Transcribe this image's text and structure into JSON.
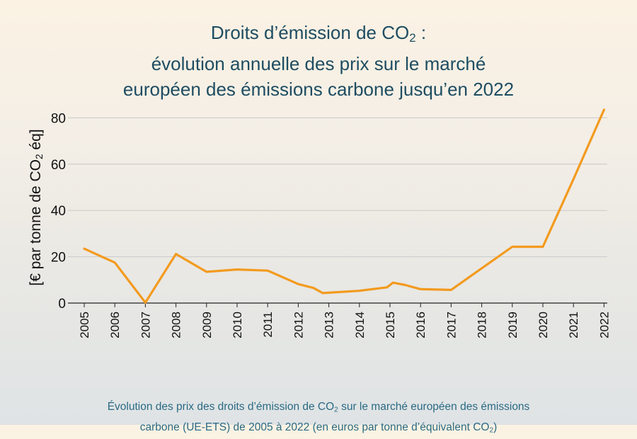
{
  "title": {
    "line1_pre": "Droits d’émission de CO",
    "line1_sub": "2",
    "line1_post": " :",
    "line2": "évolution annuelle des prix sur le marché",
    "line3": "européen des émissions carbone jusqu’en 2022"
  },
  "caption": {
    "line1_pre": "Évolution des prix des droits d’émission de CO",
    "line1_sub": "2",
    "line1_post": " sur le marché européen des émissions",
    "line2_pre": "carbone (UE-ETS) de 2005 à 2022 (en euros par tonne d’équivalent CO",
    "line2_sub": "2",
    "line2_post": ")"
  },
  "chart_data": {
    "type": "line",
    "ylabel_pre": "[€ par tonne de CO",
    "ylabel_sub": "2",
    "ylabel_post": " éq]",
    "xlabel": "",
    "ylim": [
      0,
      85
    ],
    "yticks": [
      0,
      20,
      40,
      60,
      80
    ],
    "xticks": [
      "2005",
      "2006",
      "2007",
      "2008",
      "2009",
      "2010",
      "2011",
      "2012",
      "2013",
      "2014",
      "2015",
      "2016",
      "2017",
      "2018",
      "2019",
      "2020",
      "2021",
      "2022"
    ],
    "grid": "horizontal",
    "series": [
      {
        "color": "#f39a1e",
        "points": [
          [
            2005.0,
            23.5
          ],
          [
            2006.0,
            17.5
          ],
          [
            2007.0,
            0.2
          ],
          [
            2008.0,
            21.2
          ],
          [
            2009.0,
            13.5
          ],
          [
            2010.0,
            14.5
          ],
          [
            2011.0,
            14.0
          ],
          [
            2012.0,
            8.2
          ],
          [
            2012.5,
            6.5
          ],
          [
            2012.8,
            4.3
          ],
          [
            2014.0,
            5.3
          ],
          [
            2014.9,
            6.8
          ],
          [
            2015.1,
            8.8
          ],
          [
            2015.5,
            7.8
          ],
          [
            2016.0,
            6.0
          ],
          [
            2017.0,
            5.7
          ],
          [
            2018.0,
            15.0
          ],
          [
            2019.0,
            24.3
          ],
          [
            2020.0,
            24.3
          ],
          [
            2021.0,
            53.5
          ],
          [
            2022.0,
            83.5
          ]
        ]
      }
    ]
  }
}
